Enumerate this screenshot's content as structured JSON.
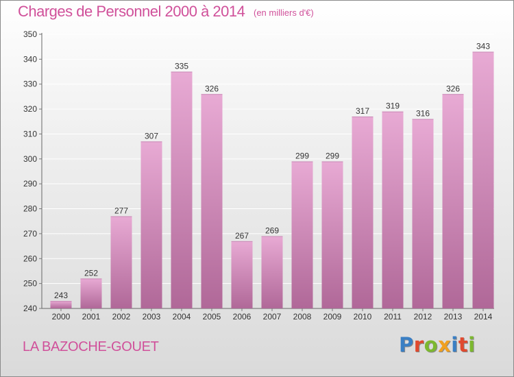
{
  "title": "Charges de Personnel 2000 à 2014",
  "unit_note": "(en milliers d'€)",
  "commune": "LA BAZOCHE-GOUET",
  "logo_text": "Proxiti",
  "logo_colors": [
    "#3a7fc4",
    "#e0492e",
    "#7cb82f",
    "#f0a020",
    "#3a7fc4",
    "#e0492e",
    "#7cb82f"
  ],
  "colors": {
    "title": "#d0509a",
    "bar_top": "#e8aad4",
    "bar_bottom": "#b06898",
    "grid": "#ffffff"
  },
  "chart_data": {
    "type": "bar",
    "categories": [
      "2000",
      "2001",
      "2002",
      "2003",
      "2004",
      "2005",
      "2006",
      "2007",
      "2008",
      "2009",
      "2010",
      "2011",
      "2012",
      "2013",
      "2014"
    ],
    "values": [
      243,
      252,
      277,
      307,
      335,
      326,
      267,
      269,
      299,
      299,
      317,
      319,
      316,
      326,
      343
    ],
    "yticks": [
      240,
      250,
      260,
      270,
      280,
      290,
      300,
      310,
      320,
      330,
      340,
      350
    ],
    "ylim": [
      240,
      350
    ],
    "grid": true,
    "data_labels": true
  }
}
